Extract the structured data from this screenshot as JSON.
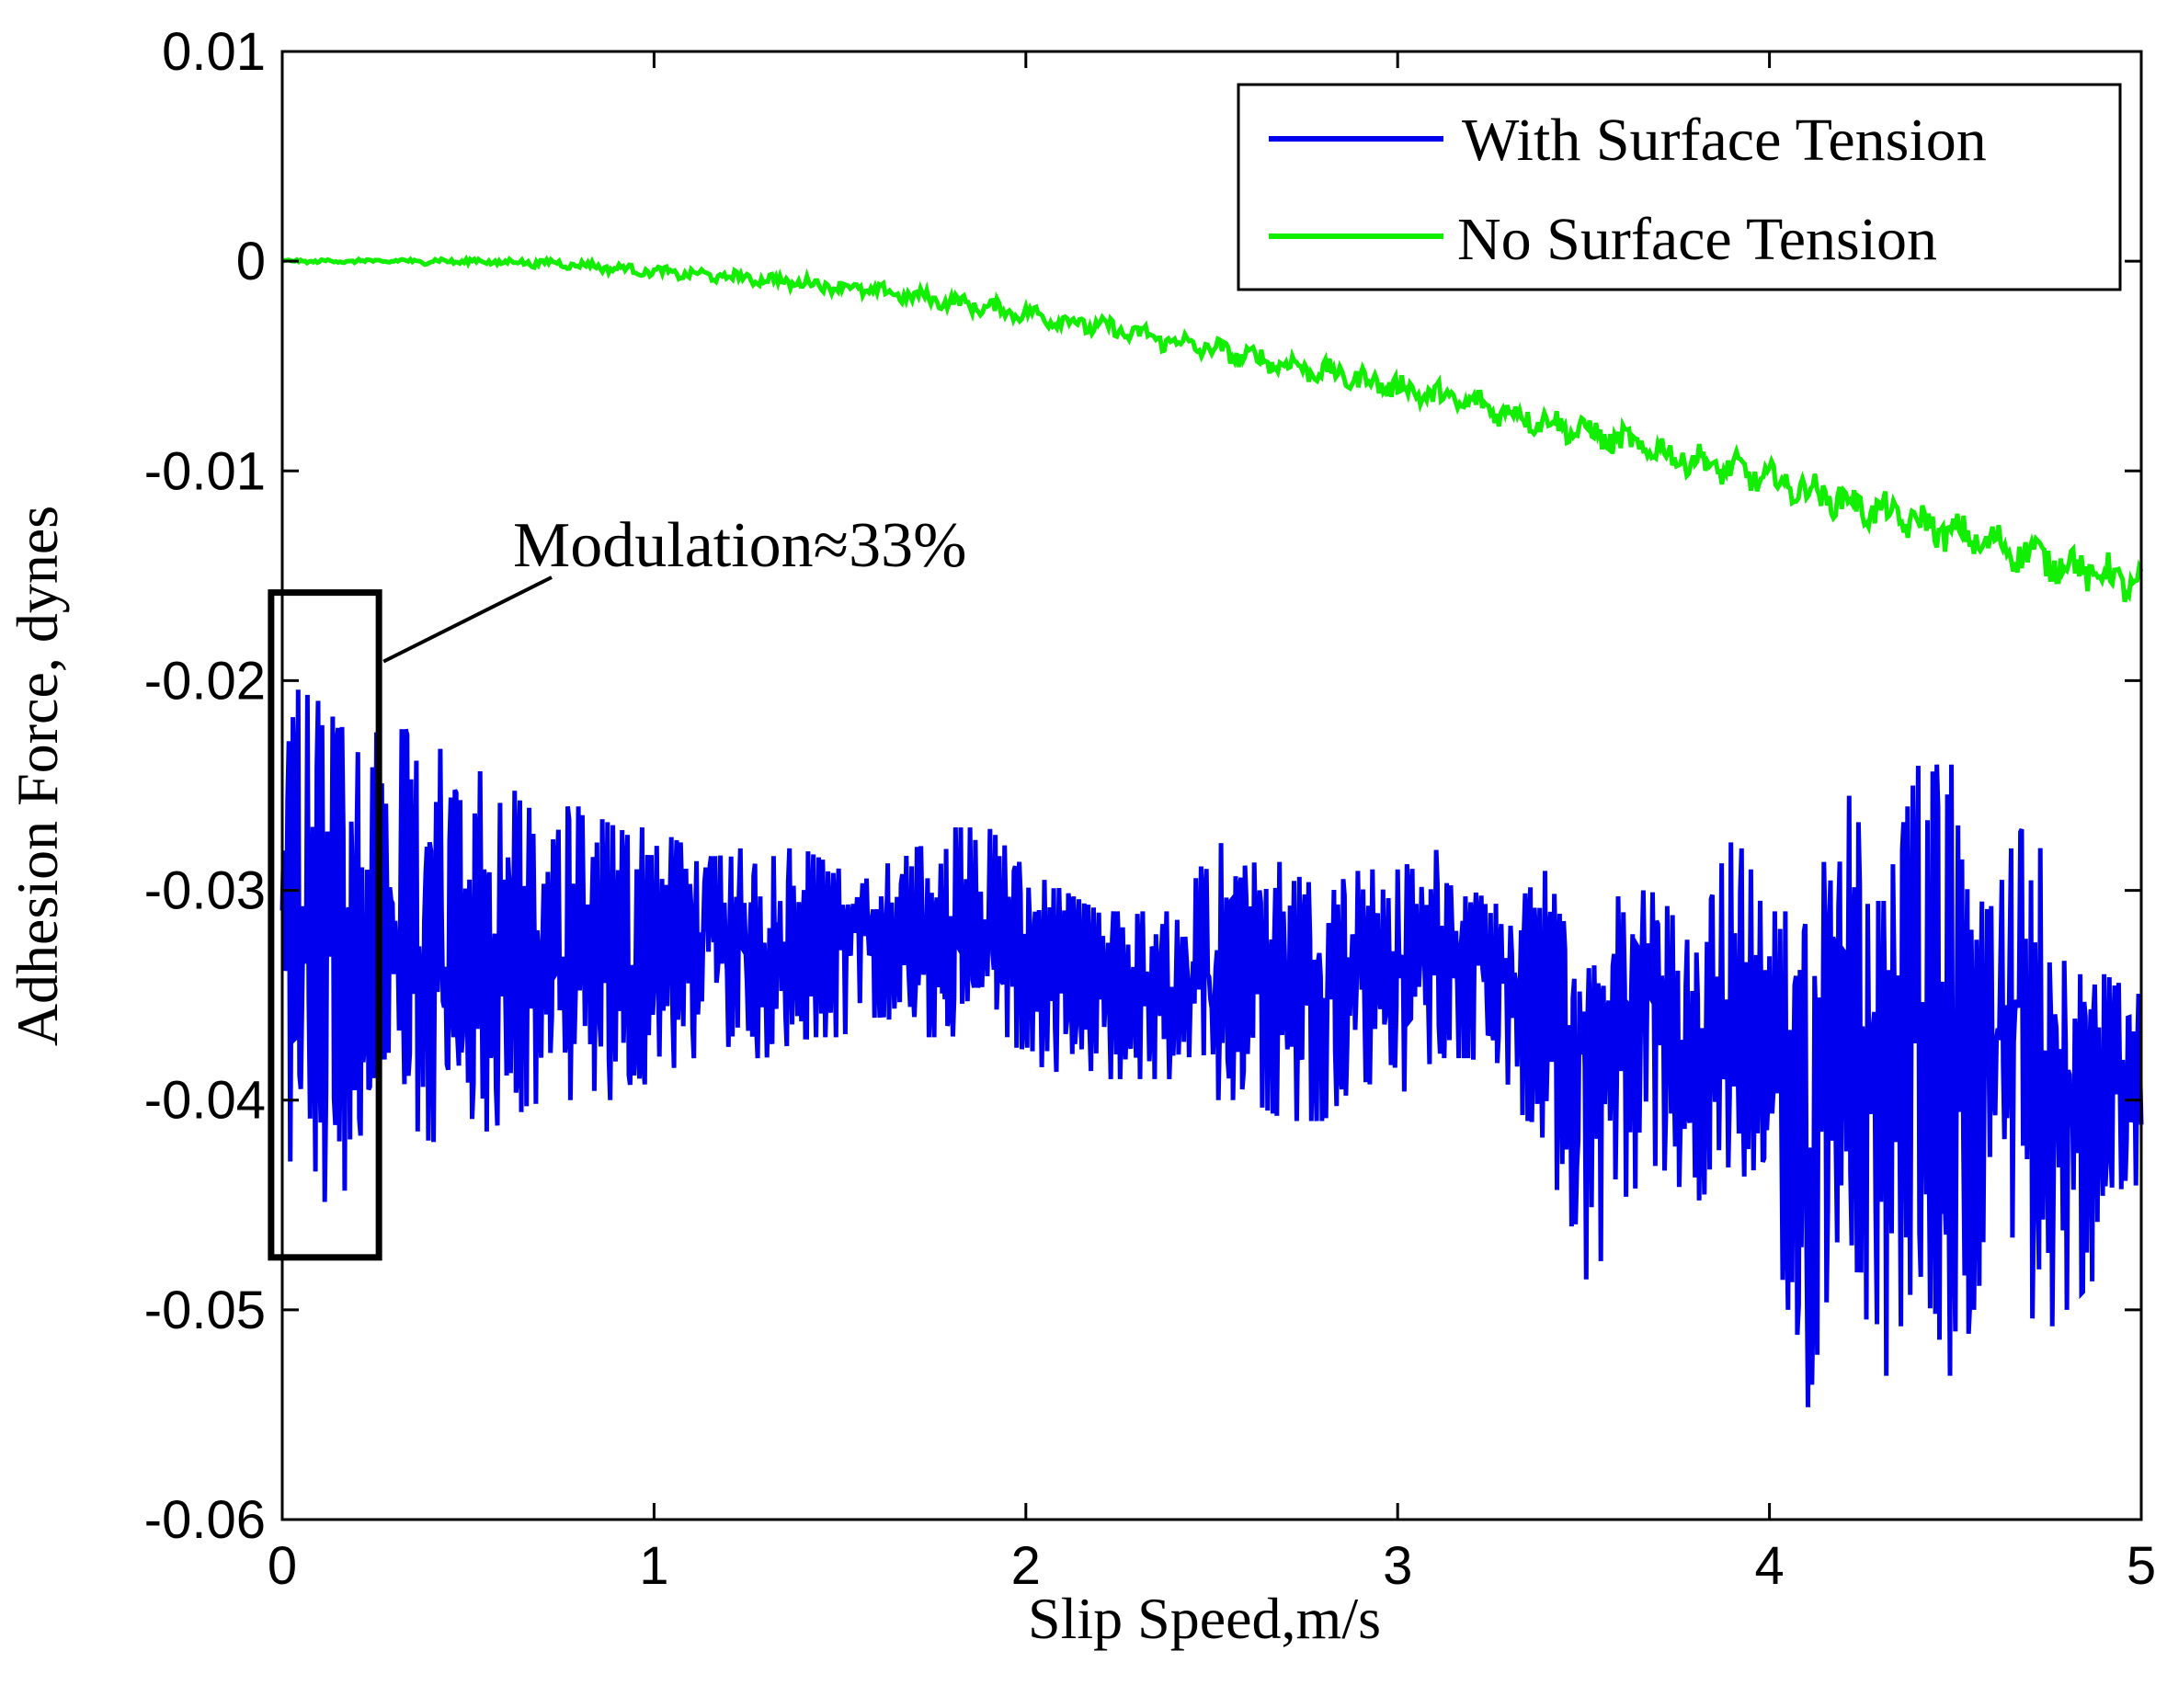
{
  "chart_data": {
    "type": "line",
    "title": "",
    "xlabel": "Slip Speed,m/s",
    "ylabel": "Adhesion Force, dynes",
    "xlim": [
      0,
      5
    ],
    "ylim": [
      -0.06,
      0.01
    ],
    "x_ticks": [
      "0",
      "1",
      "2",
      "3",
      "4",
      "5"
    ],
    "y_ticks": [
      "0.01",
      "0",
      "-0.01",
      "-0.02",
      "-0.03",
      "-0.04",
      "-0.05",
      "-0.06"
    ],
    "legend_position": "top-right",
    "grid": false,
    "series": [
      {
        "name": "With Surface Tension",
        "color": "#0000ee",
        "x": [
          0,
          0.1,
          0.2,
          0.3,
          0.4,
          0.5,
          0.6,
          0.7,
          0.8,
          0.9,
          1.0,
          1.1,
          1.2,
          1.3,
          1.4,
          1.5,
          1.6,
          1.7,
          1.8,
          1.9,
          2.0,
          2.1,
          2.2,
          2.3,
          2.4,
          2.5,
          2.6,
          2.7,
          2.8,
          2.9,
          3.0,
          3.1,
          3.2,
          3.3,
          3.4,
          3.5,
          3.6,
          3.7,
          3.8,
          3.9,
          4.0,
          4.1,
          4.2,
          4.3,
          4.4,
          4.5,
          4.6,
          4.7,
          4.8,
          4.9,
          5.0
        ],
        "y": [
          -0.034,
          -0.033,
          -0.032,
          -0.033,
          -0.034,
          -0.033,
          -0.033,
          -0.033,
          -0.034,
          -0.034,
          -0.033,
          -0.032,
          -0.032,
          -0.033,
          -0.032,
          -0.032,
          -0.032,
          -0.033,
          -0.032,
          -0.032,
          -0.033,
          -0.034,
          -0.035,
          -0.035,
          -0.035,
          -0.034,
          -0.033,
          -0.034,
          -0.034,
          -0.033,
          -0.034,
          -0.032,
          -0.033,
          -0.035,
          -0.034,
          -0.038,
          -0.036,
          -0.034,
          -0.039,
          -0.037,
          -0.039,
          -0.042,
          -0.035,
          -0.039,
          -0.034,
          -0.038,
          -0.037,
          -0.038,
          -0.039,
          -0.039,
          -0.04
        ],
        "envelope_upper": [
          -0.02,
          -0.021,
          -0.023,
          -0.022,
          -0.023,
          -0.024,
          -0.025,
          -0.026,
          -0.026,
          -0.027,
          -0.027,
          -0.028,
          -0.028,
          -0.028,
          -0.028,
          -0.029,
          -0.029,
          -0.028,
          -0.027,
          -0.027,
          -0.029,
          -0.03,
          -0.031,
          -0.031,
          -0.031,
          -0.028,
          -0.027,
          -0.029,
          -0.03,
          -0.029,
          -0.029,
          -0.028,
          -0.03,
          -0.031,
          -0.029,
          -0.034,
          -0.03,
          -0.03,
          -0.033,
          -0.027,
          -0.031,
          -0.031,
          -0.024,
          -0.031,
          -0.024,
          -0.024,
          -0.031,
          -0.025,
          -0.034,
          -0.034,
          -0.035
        ],
        "envelope_lower": [
          -0.043,
          -0.045,
          -0.044,
          -0.041,
          -0.042,
          -0.042,
          -0.041,
          -0.04,
          -0.04,
          -0.04,
          -0.039,
          -0.038,
          -0.038,
          -0.038,
          -0.037,
          -0.037,
          -0.036,
          -0.037,
          -0.037,
          -0.036,
          -0.038,
          -0.039,
          -0.039,
          -0.039,
          -0.039,
          -0.04,
          -0.04,
          -0.041,
          -0.041,
          -0.039,
          -0.04,
          -0.038,
          -0.038,
          -0.04,
          -0.042,
          -0.05,
          -0.045,
          -0.043,
          -0.045,
          -0.043,
          -0.045,
          -0.055,
          -0.045,
          -0.054,
          -0.048,
          -0.054,
          -0.046,
          -0.052,
          -0.05,
          -0.048,
          -0.044
        ],
        "style": "noisy"
      },
      {
        "name": "No Surface Tension",
        "color": "#11ee00",
        "x": [
          0,
          0.25,
          0.5,
          0.75,
          1.0,
          1.25,
          1.5,
          1.75,
          2.0,
          2.25,
          2.5,
          2.75,
          3.0,
          3.25,
          3.5,
          3.75,
          4.0,
          4.25,
          4.5,
          4.75,
          5.0
        ],
        "y": [
          0.0,
          0.0,
          0.0,
          -0.0001,
          -0.0005,
          -0.0008,
          -0.0012,
          -0.0018,
          -0.0025,
          -0.0033,
          -0.0042,
          -0.0051,
          -0.006,
          -0.007,
          -0.0081,
          -0.0093,
          -0.0104,
          -0.0117,
          -0.013,
          -0.0142,
          -0.0155
        ],
        "style": "slightly-noisy"
      }
    ],
    "annotation": {
      "text": "Modulation≈33%",
      "box_x": [
        -0.03,
        0.26
      ],
      "box_y": [
        -0.0475,
        -0.0158
      ]
    }
  }
}
